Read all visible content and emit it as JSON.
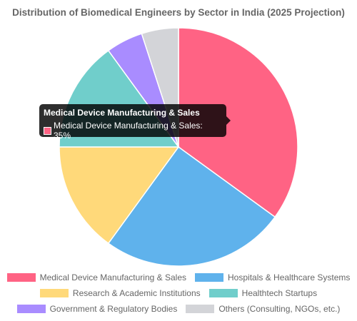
{
  "chart_data": {
    "type": "pie",
    "title": "Distribution of Biomedical Engineers by Sector in India (2025 Projection)",
    "categories": [
      "Medical Device Manufacturing & Sales",
      "Hospitals & Healthcare Systems",
      "Research & Academic Institutions",
      "Healthtech Startups",
      "Government & Regulatory Bodies",
      "Others (Consulting, NGOs, etc.)"
    ],
    "values": [
      35,
      25,
      15,
      15,
      5,
      5
    ],
    "colors": [
      "#ff6384",
      "#5fb2ec",
      "#ffd97a",
      "#70cecb",
      "#a98cff",
      "#d3d4d8"
    ],
    "legend_position": "bottom",
    "unit": "%"
  },
  "tooltip": {
    "title": "Medical Device Manufacturing & Sales",
    "body": "Medical Device Manufacturing & Sales: 35%",
    "color": "#ff6384"
  }
}
